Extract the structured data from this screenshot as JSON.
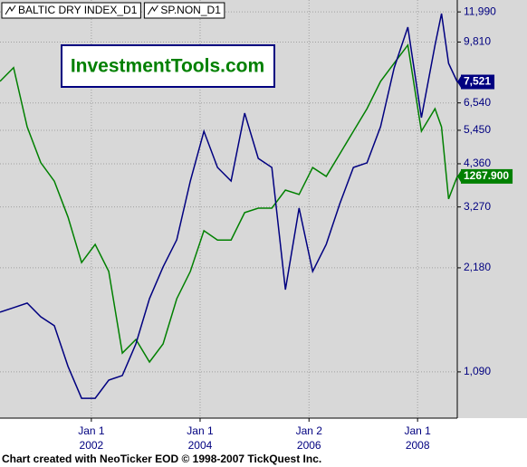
{
  "chart_data": {
    "type": "line",
    "watermark": "InvestmentTools.com",
    "footer": "Chart created with NeoTicker EOD © 1998-2007 TickQuest Inc.",
    "x": [
      2000.32,
      2000.57,
      2000.82,
      2001.07,
      2001.32,
      2001.57,
      2001.82,
      2002.07,
      2002.32,
      2002.57,
      2002.82,
      2003.07,
      2003.32,
      2003.57,
      2003.82,
      2004.07,
      2004.32,
      2004.57,
      2004.82,
      2005.07,
      2005.32,
      2005.57,
      2005.82,
      2006.07,
      2006.32,
      2006.57,
      2006.82,
      2007.07,
      2007.32,
      2007.57,
      2007.82,
      2008.07,
      2008.32,
      2008.44,
      2008.57,
      2008.73
    ],
    "series": [
      {
        "name": "BALTIC DRY INDEX_D1",
        "color": "#000080",
        "values": [
          1623,
          1672,
          1723,
          1574,
          1482,
          1131,
          914,
          914,
          1032,
          1064,
          1314,
          1776,
          2193,
          2628,
          3888,
          5416,
          4256,
          3888,
          6111,
          4520,
          4256,
          1886,
          3245,
          2128,
          2550,
          3344,
          4256,
          4387,
          5584,
          8260,
          10835,
          5927,
          9603,
          11859,
          8513,
          7521
        ],
        "value_labels": [
          null,
          null,
          null,
          null,
          null,
          null,
          null,
          null,
          null,
          null,
          null,
          null,
          null,
          null,
          null,
          null,
          null,
          null,
          null,
          null,
          null,
          null,
          null,
          null,
          null,
          null,
          null,
          null,
          null,
          null,
          null,
          null,
          null,
          null,
          null,
          "7,521"
        ]
      },
      {
        "name": "SP.NON_D1",
        "color": "#008000",
        "axis": "y2",
        "values": [
          1483,
          1514,
          1380,
          1299,
          1257,
          1176,
          1073,
          1114,
          1053,
          868,
          899,
          848,
          889,
          991,
          1053,
          1145,
          1124,
          1124,
          1186,
          1196,
          1196,
          1237,
          1227,
          1288,
          1268,
          1319,
          1370,
          1421,
          1483,
          1524,
          1565,
          1370,
          1421,
          1380,
          1217,
          1267.9
        ],
        "value_labels": [
          null,
          null,
          null,
          null,
          null,
          null,
          null,
          null,
          null,
          null,
          null,
          null,
          null,
          null,
          null,
          null,
          null,
          null,
          null,
          null,
          null,
          null,
          null,
          null,
          null,
          null,
          null,
          null,
          null,
          null,
          null,
          null,
          null,
          null,
          null,
          "1267.900"
        ]
      }
    ],
    "xlim": [
      2000.32,
      2008.73
    ],
    "xticks": [
      {
        "value": 2002,
        "label": "Jan 1",
        "year": "2002"
      },
      {
        "value": 2004,
        "label": "Jan 1",
        "year": "2004"
      },
      {
        "value": 2006.003,
        "label": "Jan 2",
        "year": "2006"
      },
      {
        "value": 2008,
        "label": "Jan 1",
        "year": "2008"
      }
    ],
    "ylim": [
      801,
      12980
    ],
    "yscale": "log",
    "yticks": [
      {
        "value": 1090,
        "label": "1,090"
      },
      {
        "value": 2180,
        "label": "2,180"
      },
      {
        "value": 3270,
        "label": "3,270"
      },
      {
        "value": 4360,
        "label": "4,360"
      },
      {
        "value": 5450,
        "label": "5,450"
      },
      {
        "value": 6540,
        "label": "6,540"
      },
      {
        "value": 9810,
        "label": "9,810"
      },
      {
        "value": 11990,
        "label": "11,990"
      }
    ],
    "y2lim": [
      721,
      1667
    ],
    "grid": true
  }
}
